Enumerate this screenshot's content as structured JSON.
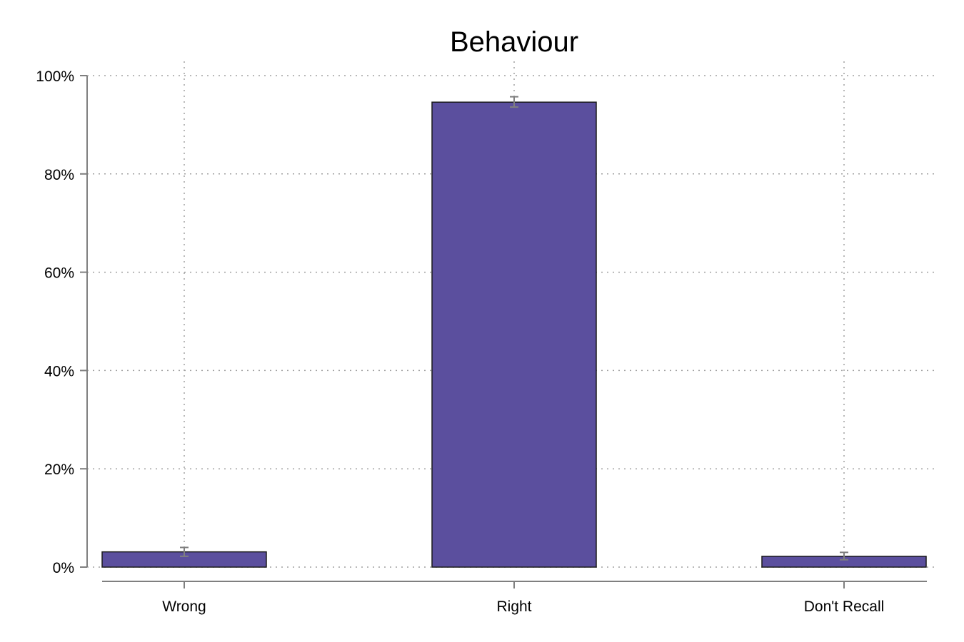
{
  "chart_data": {
    "type": "bar",
    "title": "Behaviour",
    "xlabel": "",
    "ylabel": "",
    "categories": [
      "Wrong",
      "Right",
      "Don't Recall"
    ],
    "values": [
      3.1,
      94.6,
      2.2
    ],
    "error_bars": [
      {
        "low": 2.2,
        "high": 4.0
      },
      {
        "low": 93.6,
        "high": 95.7
      },
      {
        "low": 1.5,
        "high": 3.0
      }
    ],
    "ylim": [
      0,
      100
    ],
    "yticks": [
      0,
      20,
      40,
      60,
      80,
      100
    ],
    "ytick_labels": [
      "0%",
      "20%",
      "40%",
      "60%",
      "80%",
      "100%"
    ],
    "grid": true,
    "bar_color": "#5b4f9e",
    "error_bar_color": "#7f7f7f"
  }
}
